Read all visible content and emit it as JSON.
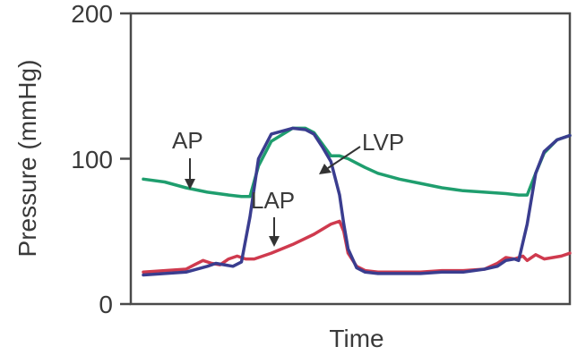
{
  "chart_data": {
    "type": "line",
    "xlabel": "Time",
    "ylabel": "Pressure (mmHg)",
    "ylim": [
      0,
      200
    ],
    "xlim": [
      0,
      100
    ],
    "yticks": [
      0,
      100,
      200
    ],
    "grid": false,
    "series": [
      {
        "name": "AP",
        "color": "#1f9e6e",
        "x": [
          0,
          5,
          10,
          15,
          20,
          23,
          25,
          27,
          30,
          35,
          38,
          40,
          42,
          44,
          46,
          48,
          50,
          52,
          55,
          60,
          65,
          70,
          75,
          80,
          85,
          88,
          90,
          92,
          94,
          97,
          100
        ],
        "y": [
          86,
          84,
          80,
          77,
          75,
          74,
          74,
          95,
          112,
          121,
          121,
          118,
          110,
          102,
          102,
          100,
          97,
          94,
          90,
          86,
          83,
          80,
          78,
          77,
          76,
          75,
          75,
          90,
          104,
          113,
          116
        ]
      },
      {
        "name": "LVP",
        "color": "#3a3d8f",
        "x": [
          0,
          5,
          10,
          15,
          17,
          19,
          21,
          23,
          25,
          27,
          30,
          35,
          38,
          40,
          42,
          44,
          46,
          47,
          48,
          50,
          52,
          55,
          60,
          65,
          70,
          75,
          80,
          83,
          85,
          87,
          88,
          90,
          92,
          94,
          97,
          100
        ],
        "y": [
          20,
          21,
          22,
          26,
          28,
          27,
          26,
          29,
          60,
          100,
          117,
          121,
          120,
          117,
          108,
          98,
          75,
          55,
          38,
          25,
          22,
          21,
          21,
          21,
          22,
          22,
          24,
          26,
          30,
          31,
          30,
          55,
          90,
          105,
          113,
          116
        ]
      },
      {
        "name": "LAP",
        "color": "#cf3a4e",
        "x": [
          0,
          5,
          10,
          12,
          14,
          16,
          18,
          20,
          22,
          24,
          26,
          30,
          35,
          40,
          44,
          46,
          47,
          48,
          50,
          52,
          55,
          60,
          65,
          70,
          75,
          80,
          83,
          85,
          87,
          89,
          90,
          92,
          94,
          96,
          98,
          100
        ],
        "y": [
          22,
          23,
          24,
          27,
          30,
          28,
          27,
          31,
          33,
          31,
          31,
          35,
          41,
          48,
          55,
          57,
          50,
          35,
          26,
          23,
          22,
          22,
          22,
          23,
          23,
          24,
          28,
          32,
          31,
          33,
          30,
          34,
          31,
          32,
          33,
          35
        ]
      }
    ],
    "annotations": [
      {
        "text": "AP",
        "target": "AP"
      },
      {
        "text": "LVP",
        "target": "LVP"
      },
      {
        "text": "LAP",
        "target": "LAP"
      }
    ]
  }
}
